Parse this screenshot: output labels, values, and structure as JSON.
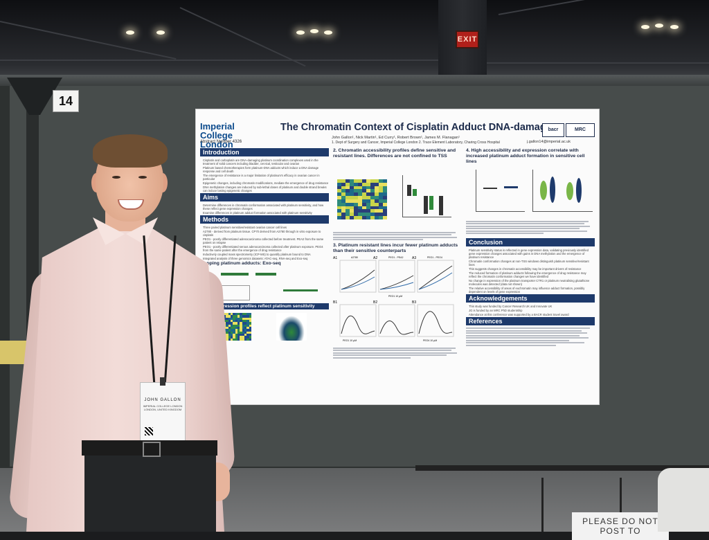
{
  "scene": {
    "exit_sign": "EXIT",
    "board_number": "14",
    "floor_sign": "PLEASE DO NOT POST TO"
  },
  "poster": {
    "institution": "Imperial College London",
    "abstract_number": "Abstract Number 4326",
    "title": "The Chromatin Context of Cisplatin Adduct DNA-damage",
    "authors": "John Gallon¹, Nick Martin¹, Ed Curry¹, Robert Brown¹, James M. Flanagan¹",
    "affiliations": "1. Dept of Surgery and Cancer, Imperial College London 2. Trace Element Laboratory, Charing Cross Hospital",
    "email": "j.gallon14@imperial.ac.uk",
    "partner_logos": [
      "bacr",
      "MRC"
    ],
    "sections": {
      "introduction": "Introduction",
      "aims": "Aims",
      "methods": "Methods",
      "s2": "2. Chromatin accessibility profiles define sensitive and resistant lines. Differences are not confined to TSS",
      "s3": "3. Platinum resistant lines incur fewer platinum adducts than their sensitive counterparts",
      "s4": "4. High accessibility and expression correlate with increased platinum adduct formation in sensitive cell lines",
      "conclusion": "Conclusion",
      "acknowledgements": "Acknowledgements",
      "references": "References"
    },
    "intro_bullets": [
      "Cisplatin and carboplatin are DNA-damaging platinum coordination complexes used in the treatment of solid cancers including bladder, cervical, testicular and ovarian",
      "Platinum based chemotherapies form platinum-DNA adducts which induce a DNA damage response and cell death",
      "The emergence of resistance is a major limitation of platinum's efficacy in ovarian cancer in particular",
      "Epigenetic changes, including chromatin modifications, mediate the emergence of drug resistance",
      "DNA methylation changes are induced by sub-lethal doses of platinum and double strand breaks can induce lasting epigenetic changes"
    ],
    "aims_bullets": [
      "Determine differences in chromatin conformation associated with platinum sensitivity, and how these reflect gene expression changes",
      "Examine differences in platinum adduct formation associated with platinum sensitivity"
    ],
    "methods_bullets": [
      "Three paired platinum sensitive/resistant ovarian cancer cell lines",
      "A2780 - derived from platinum tissue. CP70 derived from A2780 through in vitro exposure to cisplatin",
      "PEO1 - poorly differentiated adenocarcinoma collected before treatment. PEA2 from the same patient on relapse",
      "PEO1 - poorly differentiated serous adenocarcinoma collected after platinum exposure. PEO4 from the same patient after the emergence of drug resistance",
      "Inductively coupled mass spectrometry (ICP-MS) to quantify platinum bound to DNA",
      "Integrated analysis of three genomics datasets: ATAC-seq, RNA-seq and Exo-seq"
    ],
    "mapping_label": "Mapping platinum adducts: Exo-seq",
    "expression_label": "Gene expression profiles reflect platinum sensitivity",
    "s3_panels": [
      "A1",
      "A2",
      "A3",
      "B1",
      "B2",
      "B3"
    ],
    "s3_panel_titles": [
      "A2780",
      "PEO1 - PEA2",
      "PEO1 - PEO4"
    ],
    "s3_x_labels": [
      "PEO1 10 µM",
      "PEO4 10 µM",
      "PEO4 10 µM",
      "PEO1 10 µM",
      "PEO4 10 µM"
    ],
    "conclusion_bullets": [
      "Platinum sensitivity status is reflected in gene expression data, validating previously identified gene expression changes associated with gains in DNA methylation and the emergence of platinum resistance",
      "Chromatin conformation changes at non-TSS windows distinguish platinum sensitive/resistant lines",
      "This suggests changes in chromatin accessibility may be important drivers of resistance",
      "The reduced formation of platinum adducts following the emergence of drug resistance may reflect the chromatin conformation changes we have identified",
      "No change in expression of the platinum transporter CTR1 or platinum neutralising glutathione molecules was detected (data not shown)",
      "The relative accessibility of areas of euchromatin may influence adduct formation, possibly dependent on levels of gene expression"
    ],
    "ack_bullets": [
      "This study was funded by Cancer Research UK and Innovate UK",
      "JG is funded by an MRC PhD studentship",
      "Attendance at this conference was supported by a BACR student travel award"
    ]
  },
  "badge": {
    "name": "JOHN GALLON",
    "org": "IMPERIAL COLLEGE LONDON LONDON, UNITED KINGDOM"
  },
  "colors": {
    "section_bar": "#1e3a6b",
    "imperial_blue": "#0b4a8c",
    "board": "#474c4b"
  }
}
